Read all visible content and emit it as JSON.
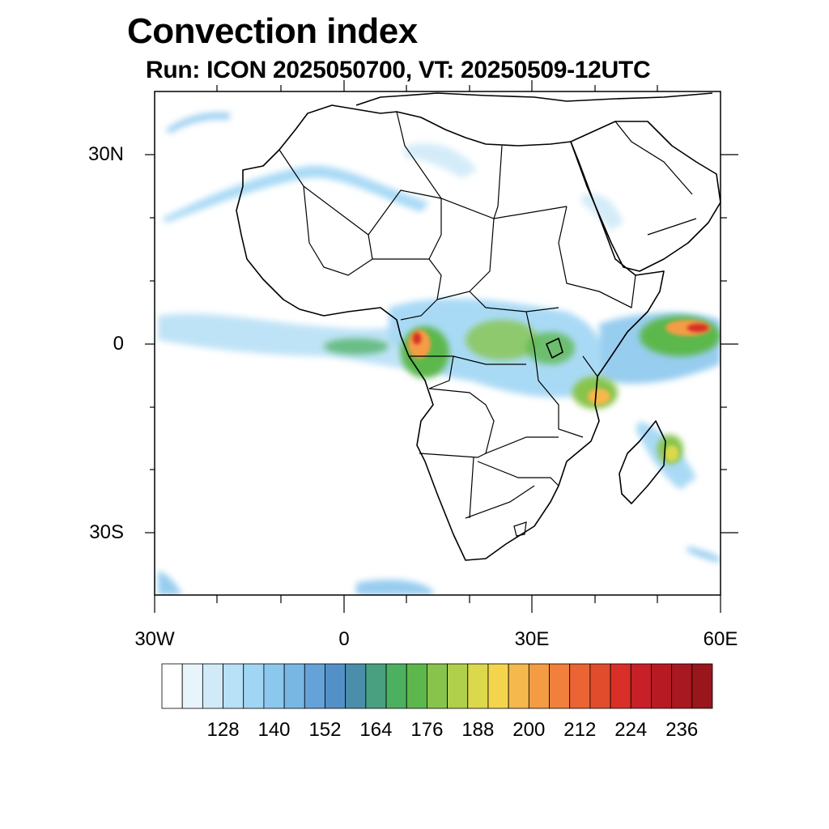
{
  "title": "Convection index",
  "subtitle": "Run: ICON 2025050700,  VT: 20250509-12UTC",
  "axes": {
    "lat_labels": [
      "30N",
      "0",
      "30S"
    ],
    "lon_labels": [
      "30W",
      "0",
      "30E",
      "60E"
    ]
  },
  "colorbar": {
    "labels": [
      "128",
      "140",
      "152",
      "164",
      "176",
      "188",
      "200",
      "212",
      "224",
      "236"
    ],
    "colors": [
      "#ffffff",
      "#e8f4fb",
      "#d0eaf8",
      "#b8e0f6",
      "#a0d6f4",
      "#8cc8ee",
      "#78b6e4",
      "#64a2d8",
      "#5490c8",
      "#4a8eaa",
      "#48a080",
      "#4cb060",
      "#5cb84c",
      "#88c44c",
      "#b0d04c",
      "#dcd84c",
      "#f4d44c",
      "#f4b84c",
      "#f49c44",
      "#f0803c",
      "#ea6434",
      "#e04c2c",
      "#d83028",
      "#c82028",
      "#b81a24",
      "#a81820",
      "#98161c"
    ]
  },
  "map": {
    "region": "Africa",
    "lon_range": [
      -30,
      60
    ],
    "lat_range": [
      -40,
      40
    ]
  }
}
